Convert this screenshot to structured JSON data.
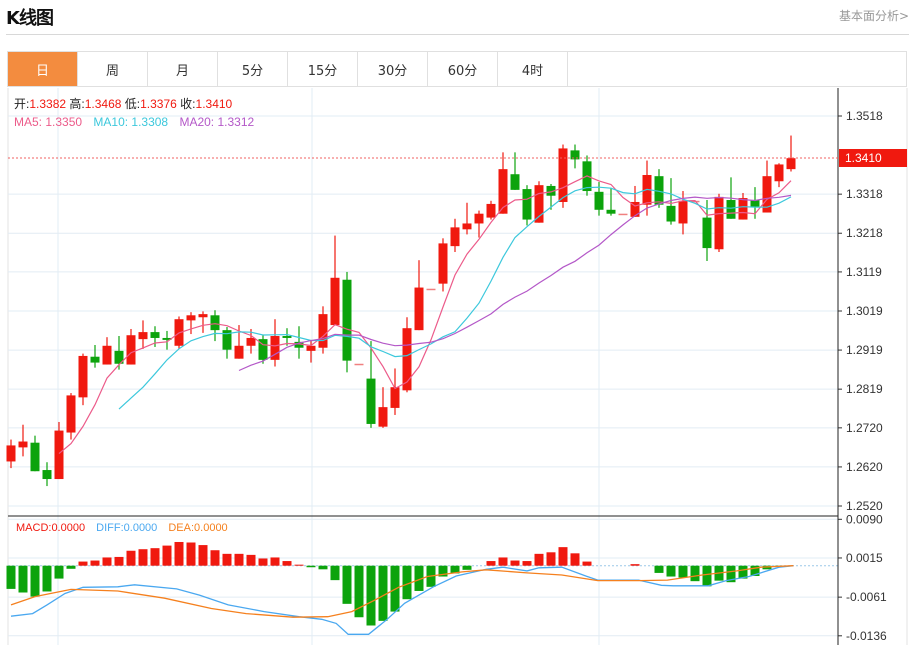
{
  "header": {
    "title": "K线图",
    "link": "基本面分析>"
  },
  "tabs": [
    {
      "label": "日",
      "active": true
    },
    {
      "label": "周"
    },
    {
      "label": "月"
    },
    {
      "label": "5分"
    },
    {
      "label": "15分"
    },
    {
      "label": "30分"
    },
    {
      "label": "60分"
    },
    {
      "label": "4时"
    }
  ],
  "info": {
    "open_label": "开:",
    "open": "1.3382",
    "high_label": "高:",
    "high": "1.3468",
    "low_label": "低:",
    "low": "1.3376",
    "close_label": "收:",
    "close": "1.3410",
    "ma5": "MA5: 1.3350",
    "ma10": "MA10: 1.3308",
    "ma20": "MA20: 1.3312"
  },
  "macd_info": {
    "macd": "MACD:0.0000",
    "diff": "DIFF:0.0000",
    "dea": "DEA:0.0000"
  },
  "colors": {
    "up": "#f0190f",
    "down": "#0ca30c",
    "accent": "#f38c3f",
    "ma5": "#ec5b8a",
    "ma10": "#3cc8dc",
    "ma20": "#b458c8",
    "diff": "#4aa8f0",
    "dea": "#f5801e"
  },
  "chart_data": [
    {
      "type": "candlestick",
      "y_ticks": [
        "1.3518",
        "1.3318",
        "1.3218",
        "1.3119",
        "1.3019",
        "1.2919",
        "1.2819",
        "1.2720",
        "1.2620",
        "1.2520"
      ],
      "ylim": [
        1.252,
        1.3518
      ],
      "last_price": "1.3410",
      "ohlc": [
        [
          1.2634,
          1.269,
          1.2617,
          1.2675
        ],
        [
          1.267,
          1.2728,
          1.2647,
          1.2685
        ],
        [
          1.2682,
          1.27,
          1.2609,
          1.2609
        ],
        [
          1.2612,
          1.2632,
          1.2571,
          1.2589
        ],
        [
          1.2589,
          1.2735,
          1.2589,
          1.2713
        ],
        [
          1.2708,
          1.2809,
          1.269,
          1.2803
        ],
        [
          1.2798,
          1.291,
          1.2778,
          1.2904
        ],
        [
          1.2902,
          1.2932,
          1.2874,
          1.2887
        ],
        [
          1.2882,
          1.2952,
          1.2882,
          1.293
        ],
        [
          1.2917,
          1.2955,
          1.2869,
          1.2884
        ],
        [
          1.2882,
          1.2973,
          1.2882,
          1.2957
        ],
        [
          1.2947,
          1.2995,
          1.2922,
          1.2965
        ],
        [
          1.2965,
          1.298,
          1.2927,
          1.295
        ],
        [
          1.295,
          1.2968,
          1.292,
          1.2945
        ],
        [
          1.293,
          1.3005,
          1.2922,
          1.2998
        ],
        [
          1.2995,
          1.3016,
          1.296,
          1.3008
        ],
        [
          1.3003,
          1.3018,
          1.2963,
          1.3011
        ],
        [
          1.3008,
          1.3021,
          1.2942,
          1.297
        ],
        [
          1.297,
          1.2978,
          1.2897,
          1.292
        ],
        [
          1.2897,
          1.2983,
          1.2897,
          1.293
        ],
        [
          1.293,
          1.2973,
          1.291,
          1.295
        ],
        [
          1.2947,
          1.2957,
          1.2884,
          1.2894
        ],
        [
          1.2894,
          1.2998,
          1.2877,
          1.2955
        ],
        [
          1.2955,
          1.2975,
          1.293,
          1.295
        ],
        [
          1.294,
          1.298,
          1.2897,
          1.2925
        ],
        [
          1.2917,
          1.2945,
          1.2887,
          1.293
        ],
        [
          1.2925,
          1.3031,
          1.291,
          1.3011
        ],
        [
          1.2983,
          1.3212,
          1.2983,
          1.3104
        ],
        [
          1.3099,
          1.3119,
          1.2862,
          1.2892
        ],
        [
          1.2884,
          1.2884,
          1.2884,
          1.2884
        ],
        [
          1.2846,
          1.2942,
          1.272,
          1.273
        ],
        [
          1.2723,
          1.2824,
          1.272,
          1.2773
        ],
        [
          1.2771,
          1.2872,
          1.2753,
          1.2824
        ],
        [
          1.2816,
          1.3003,
          1.2811,
          1.2975
        ],
        [
          1.297,
          1.3149,
          1.297,
          1.3079
        ],
        [
          1.3076,
          1.3076,
          1.3076,
          1.3076
        ],
        [
          1.3089,
          1.3205,
          1.3069,
          1.3192
        ],
        [
          1.3185,
          1.3255,
          1.317,
          1.3233
        ],
        [
          1.3228,
          1.3296,
          1.3215,
          1.3243
        ],
        [
          1.3243,
          1.3276,
          1.3207,
          1.3268
        ],
        [
          1.3258,
          1.3301,
          1.3253,
          1.3293
        ],
        [
          1.3268,
          1.3425,
          1.3268,
          1.3382
        ],
        [
          1.3369,
          1.3425,
          1.3329,
          1.3329
        ],
        [
          1.3331,
          1.3341,
          1.3238,
          1.3253
        ],
        [
          1.3245,
          1.3351,
          1.3245,
          1.3341
        ],
        [
          1.3339,
          1.3344,
          1.3278,
          1.3314
        ],
        [
          1.3298,
          1.3445,
          1.3283,
          1.3435
        ],
        [
          1.343,
          1.3445,
          1.3384,
          1.3407
        ],
        [
          1.3402,
          1.3417,
          1.3314,
          1.3326
        ],
        [
          1.3324,
          1.3349,
          1.3263,
          1.3278
        ],
        [
          1.3278,
          1.3334,
          1.3263,
          1.3268
        ],
        [
          1.3268,
          1.3268,
          1.3268,
          1.3268
        ],
        [
          1.326,
          1.3339,
          1.326,
          1.3298
        ],
        [
          1.3291,
          1.3404,
          1.3263,
          1.3367
        ],
        [
          1.3364,
          1.3382,
          1.3283,
          1.3291
        ],
        [
          1.3288,
          1.3359,
          1.324,
          1.3248
        ],
        [
          1.3243,
          1.3326,
          1.3215,
          1.3301
        ],
        [
          1.3301,
          1.3301,
          1.3301,
          1.3301
        ],
        [
          1.3258,
          1.3303,
          1.3147,
          1.318
        ],
        [
          1.3177,
          1.3319,
          1.317,
          1.3311
        ],
        [
          1.3303,
          1.3361,
          1.3255,
          1.3255
        ],
        [
          1.3253,
          1.3321,
          1.3253,
          1.3308
        ],
        [
          1.3303,
          1.3336,
          1.3255,
          1.3286
        ],
        [
          1.3271,
          1.3404,
          1.3271,
          1.3364
        ],
        [
          1.3351,
          1.3397,
          1.3336,
          1.3394
        ],
        [
          1.3382,
          1.3468,
          1.3376,
          1.341
        ]
      ],
      "ma_periods": [
        5,
        10,
        20
      ]
    },
    {
      "type": "bar+line",
      "y_ticks": [
        "0.0090",
        "0.0015",
        "-0.0061",
        "-0.0136"
      ],
      "macd_hist": [
        -0.0045,
        -0.0052,
        -0.006,
        -0.005,
        -0.0025,
        -0.0006,
        0.0008,
        0.001,
        0.0016,
        0.0017,
        0.0029,
        0.0032,
        0.0034,
        0.0039,
        0.0046,
        0.0045,
        0.004,
        0.003,
        0.0023,
        0.0023,
        0.0021,
        0.0014,
        0.0016,
        0.0009,
        0.0002,
        -0.0003,
        -0.0007,
        -0.0028,
        -0.0074,
        -0.01,
        -0.0116,
        -0.0107,
        -0.0089,
        -0.0065,
        -0.0049,
        -0.0041,
        -0.0021,
        -0.0015,
        -0.0008,
        0.0,
        0.0009,
        0.0016,
        0.001,
        0.0009,
        0.0023,
        0.0026,
        0.0036,
        0.0024,
        0.0008,
        0.0,
        0.0,
        0.0,
        0.0003,
        0.0,
        -0.0014,
        -0.0021,
        -0.0023,
        -0.003,
        -0.004,
        -0.0029,
        -0.0032,
        -0.0025,
        -0.002,
        -0.0007,
        -0.0002,
        0.0
      ],
      "diff": [
        [
          0,
          -0.0098
        ],
        [
          1.8,
          -0.0093
        ],
        [
          3.0,
          -0.0076
        ],
        [
          4.5,
          -0.0054
        ],
        [
          6.0,
          -0.0042
        ],
        [
          8.9,
          -0.0041
        ],
        [
          10.3,
          -0.0037
        ],
        [
          13.8,
          -0.0045
        ],
        [
          15.7,
          -0.0057
        ],
        [
          18.1,
          -0.0076
        ],
        [
          21.1,
          -0.0089
        ],
        [
          24.0,
          -0.0099
        ],
        [
          25.9,
          -0.0104
        ],
        [
          27.1,
          -0.0112
        ],
        [
          28.1,
          -0.0133
        ],
        [
          29.8,
          -0.0133
        ],
        [
          31.3,
          -0.0105
        ],
        [
          32.8,
          -0.0073
        ],
        [
          35.2,
          -0.0041
        ],
        [
          37.1,
          -0.002
        ],
        [
          39.6,
          -0.0007
        ],
        [
          41.0,
          -0.0003
        ],
        [
          43.0,
          -0.001
        ],
        [
          44.0,
          -0.0004
        ],
        [
          45.9,
          -0.0003
        ],
        [
          47.9,
          -0.002
        ],
        [
          48.9,
          -0.0028
        ],
        [
          52.3,
          -0.0028
        ],
        [
          54.2,
          -0.0038
        ],
        [
          55.2,
          -0.0039
        ],
        [
          58.1,
          -0.0039
        ],
        [
          59.6,
          -0.0029
        ],
        [
          61.5,
          -0.0021
        ],
        [
          64.0,
          -0.0003
        ],
        [
          65.2,
          0.0
        ]
      ],
      "dea": [
        [
          0,
          -0.0076
        ],
        [
          2.0,
          -0.006
        ],
        [
          5.0,
          -0.0046
        ],
        [
          8.9,
          -0.0049
        ],
        [
          12.8,
          -0.0063
        ],
        [
          16.7,
          -0.0083
        ],
        [
          19.6,
          -0.0093
        ],
        [
          23.5,
          -0.01
        ],
        [
          26.4,
          -0.0099
        ],
        [
          28.4,
          -0.0089
        ],
        [
          30.3,
          -0.0067
        ],
        [
          32.3,
          -0.0042
        ],
        [
          34.7,
          -0.0021
        ],
        [
          37.6,
          -0.0012
        ],
        [
          39.6,
          -0.0008
        ],
        [
          43.0,
          -0.0014
        ],
        [
          45.9,
          -0.0018
        ],
        [
          48.9,
          -0.0029
        ],
        [
          52.3,
          -0.0029
        ],
        [
          54.7,
          -0.0028
        ],
        [
          57.6,
          -0.0018
        ],
        [
          60.5,
          -0.001
        ],
        [
          62.5,
          -0.0003
        ],
        [
          65.2,
          0.0
        ]
      ]
    }
  ]
}
